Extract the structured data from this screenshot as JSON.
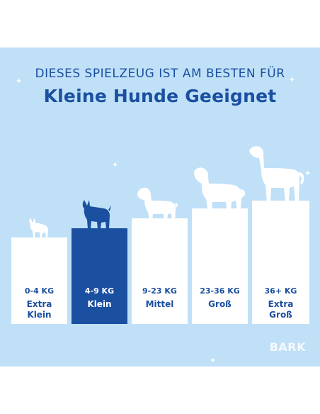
{
  "headline": {
    "line1": "DIESES SPIELZEUG IST AM BESTEN FÜR",
    "line2": "Kleine Hunde Geeignet"
  },
  "sizes": [
    {
      "range": "0-4 KG",
      "name": "Extra Klein",
      "active": false
    },
    {
      "range": "4-9 KG",
      "name": "Klein",
      "active": true
    },
    {
      "range": "9-23 KG",
      "name": "Mittel",
      "active": false
    },
    {
      "range": "23-36 KG",
      "name": "Groß",
      "active": false
    },
    {
      "range": "36+ KG",
      "name": "Extra Groß",
      "active": false
    }
  ],
  "logo": "BARK",
  "colors": {
    "background": "#bfe0f7",
    "accent": "#1b4fa0",
    "podium": "#ffffff"
  },
  "icons": [
    "chihuahua-icon",
    "terrier-icon",
    "medium-dog-icon",
    "large-dog-icon",
    "great-dane-icon",
    "star-icon"
  ]
}
